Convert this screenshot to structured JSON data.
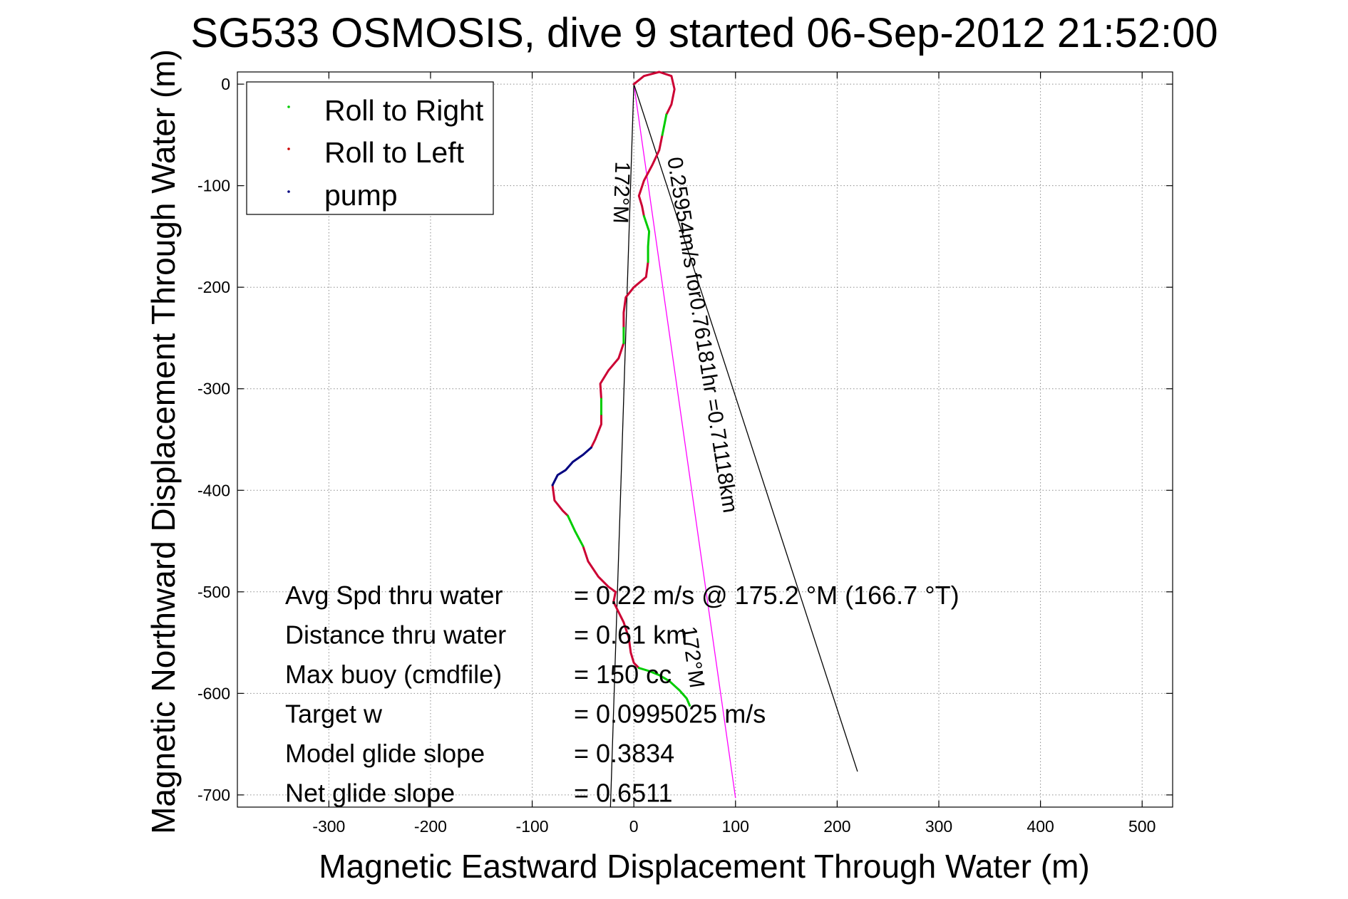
{
  "chart_data": {
    "type": "line",
    "title": "SG533 OSMOSIS, dive 9 started 06-Sep-2012 21:52:00",
    "xlabel": "Magnetic Eastward Displacement Through Water (m)",
    "ylabel": "Magnetic Northward Displacement Through Water (m)",
    "xlim": [
      -390,
      530
    ],
    "ylim": [
      -712,
      12
    ],
    "xticks": [
      -300,
      -200,
      -100,
      0,
      100,
      200,
      300,
      400,
      500
    ],
    "yticks": [
      0,
      -100,
      -200,
      -300,
      -400,
      -500,
      -600,
      -700
    ],
    "grid": true,
    "legend_position": "top-left",
    "legend": [
      {
        "label": "Roll to Right",
        "color": "#00cc00"
      },
      {
        "label": "Roll to Left",
        "color": "#cc0000"
      },
      {
        "label": "pump",
        "color": "#000080"
      }
    ],
    "series": [
      {
        "name": "Roll to Left",
        "color": "#cc0033",
        "segments": [
          [
            [
              0,
              0
            ],
            [
              10,
              8
            ],
            [
              25,
              12
            ],
            [
              37,
              8
            ],
            [
              40,
              -5
            ],
            [
              37,
              -20
            ],
            [
              32,
              -30
            ]
          ],
          [
            [
              28,
              -50
            ],
            [
              25,
              -65
            ],
            [
              18,
              -80
            ],
            [
              10,
              -95
            ],
            [
              5,
              -110
            ],
            [
              8,
              -120
            ],
            [
              10,
              -130
            ]
          ],
          [
            [
              14,
              -175
            ],
            [
              12,
              -190
            ],
            [
              0,
              -200
            ],
            [
              -8,
              -210
            ],
            [
              -10,
              -225
            ],
            [
              -10,
              -240
            ]
          ],
          [
            [
              -10,
              -255
            ],
            [
              -15,
              -270
            ],
            [
              -25,
              -282
            ],
            [
              -33,
              -295
            ],
            [
              -32,
              -310
            ]
          ],
          [
            [
              -32,
              -325
            ],
            [
              -32,
              -335
            ],
            [
              -38,
              -350
            ],
            [
              -42,
              -358
            ]
          ],
          [
            [
              -80,
              -395
            ],
            [
              -78,
              -410
            ],
            [
              -70,
              -420
            ],
            [
              -65,
              -425
            ]
          ],
          [
            [
              -50,
              -455
            ],
            [
              -45,
              -470
            ],
            [
              -35,
              -485
            ],
            [
              -25,
              -495
            ],
            [
              -18,
              -500
            ],
            [
              -20,
              -510
            ],
            [
              -15,
              -520
            ],
            [
              -10,
              -530
            ],
            [
              -5,
              -545
            ],
            [
              -3,
              -560
            ],
            [
              0,
              -570
            ],
            [
              5,
              -575
            ]
          ]
        ]
      },
      {
        "name": "Roll to Right",
        "color": "#00cc00",
        "segments": [
          [
            [
              32,
              -30
            ],
            [
              30,
              -40
            ],
            [
              28,
              -50
            ]
          ],
          [
            [
              10,
              -130
            ],
            [
              15,
              -145
            ],
            [
              14,
              -160
            ],
            [
              14,
              -175
            ]
          ],
          [
            [
              -10,
              -240
            ],
            [
              -10,
              -255
            ]
          ],
          [
            [
              -32,
              -310
            ],
            [
              -32,
              -325
            ]
          ],
          [
            [
              -65,
              -425
            ],
            [
              -58,
              -440
            ],
            [
              -50,
              -455
            ]
          ],
          [
            [
              5,
              -575
            ],
            [
              15,
              -578
            ],
            [
              25,
              -582
            ],
            [
              35,
              -588
            ],
            [
              45,
              -597
            ],
            [
              52,
              -605
            ],
            [
              55,
              -612
            ]
          ]
        ]
      },
      {
        "name": "pump",
        "color": "#000080",
        "segments": [
          [
            [
              -42,
              -358
            ],
            [
              -50,
              -365
            ],
            [
              -60,
              -372
            ],
            [
              -67,
              -380
            ],
            [
              -75,
              -385
            ],
            [
              -80,
              -395
            ]
          ]
        ]
      }
    ],
    "reference_lines": [
      {
        "from": [
          0,
          0
        ],
        "to": [
          100,
          -703
        ],
        "color": "#ff00ff"
      },
      {
        "from": [
          0,
          0
        ],
        "to": [
          220,
          -677
        ],
        "color": "#000000"
      },
      {
        "from": [
          0,
          0
        ],
        "to": [
          -23,
          -712
        ],
        "color": "#000000"
      }
    ],
    "annotations": [
      {
        "text": "0.25954m/s for0.76181hr =0.71118km",
        "at": [
          33,
          -73
        ],
        "rotation_deg": 81
      },
      {
        "text": "172°M",
        "at": [
          -18,
          -76
        ],
        "rotation_deg": 92
      },
      {
        "text": "172°M",
        "at": [
          47,
          -535
        ],
        "rotation_deg": 82
      }
    ],
    "stats": [
      {
        "label": "Avg Spd thru water",
        "value": "=  0.22 m/s @ 175.2 °M (166.7 °T)"
      },
      {
        "label": "Distance thru water",
        "value": "=  0.61 km"
      },
      {
        "label": "Max buoy (cmdfile)",
        "value": "= 150 cc"
      },
      {
        "label": "Target w",
        "value": "= 0.0995025 m/s"
      },
      {
        "label": "Model glide slope",
        "value": "= 0.3834"
      },
      {
        "label": "Net glide slope",
        "value": "= 0.6511"
      }
    ]
  }
}
